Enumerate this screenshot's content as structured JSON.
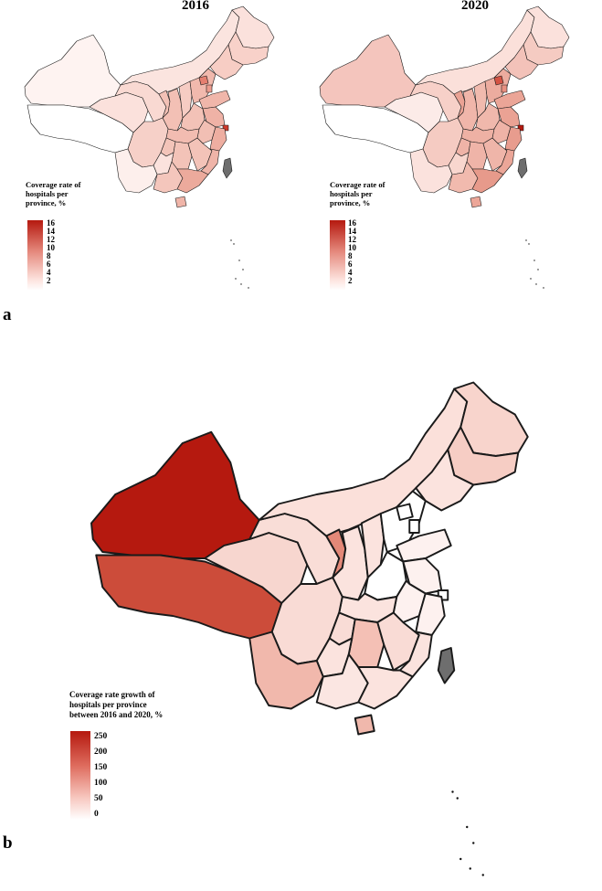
{
  "panel_a": {
    "letter": "a",
    "maps": [
      {
        "title": "2016"
      },
      {
        "title": "2020"
      }
    ],
    "legend": {
      "title_lines": [
        "Coverage rate of",
        "hospitals per",
        "province, %"
      ],
      "ticks": [
        "16",
        "14",
        "12",
        "10",
        "8",
        "6",
        "4",
        "2"
      ],
      "color_high": "#b5190f",
      "color_low": "#ffffff"
    }
  },
  "panel_b": {
    "letter": "b",
    "legend": {
      "title_lines": [
        "Coverage rate growth of",
        "hospitals per province",
        "between 2016 and 2020, %"
      ],
      "ticks": [
        "250",
        "200",
        "150",
        "100",
        "50",
        "0"
      ],
      "color_high": "#b5190f",
      "color_low": "#ffffff"
    }
  },
  "taiwan_color": "#6e6e6e",
  "no_data_color": "#ffffff"
}
